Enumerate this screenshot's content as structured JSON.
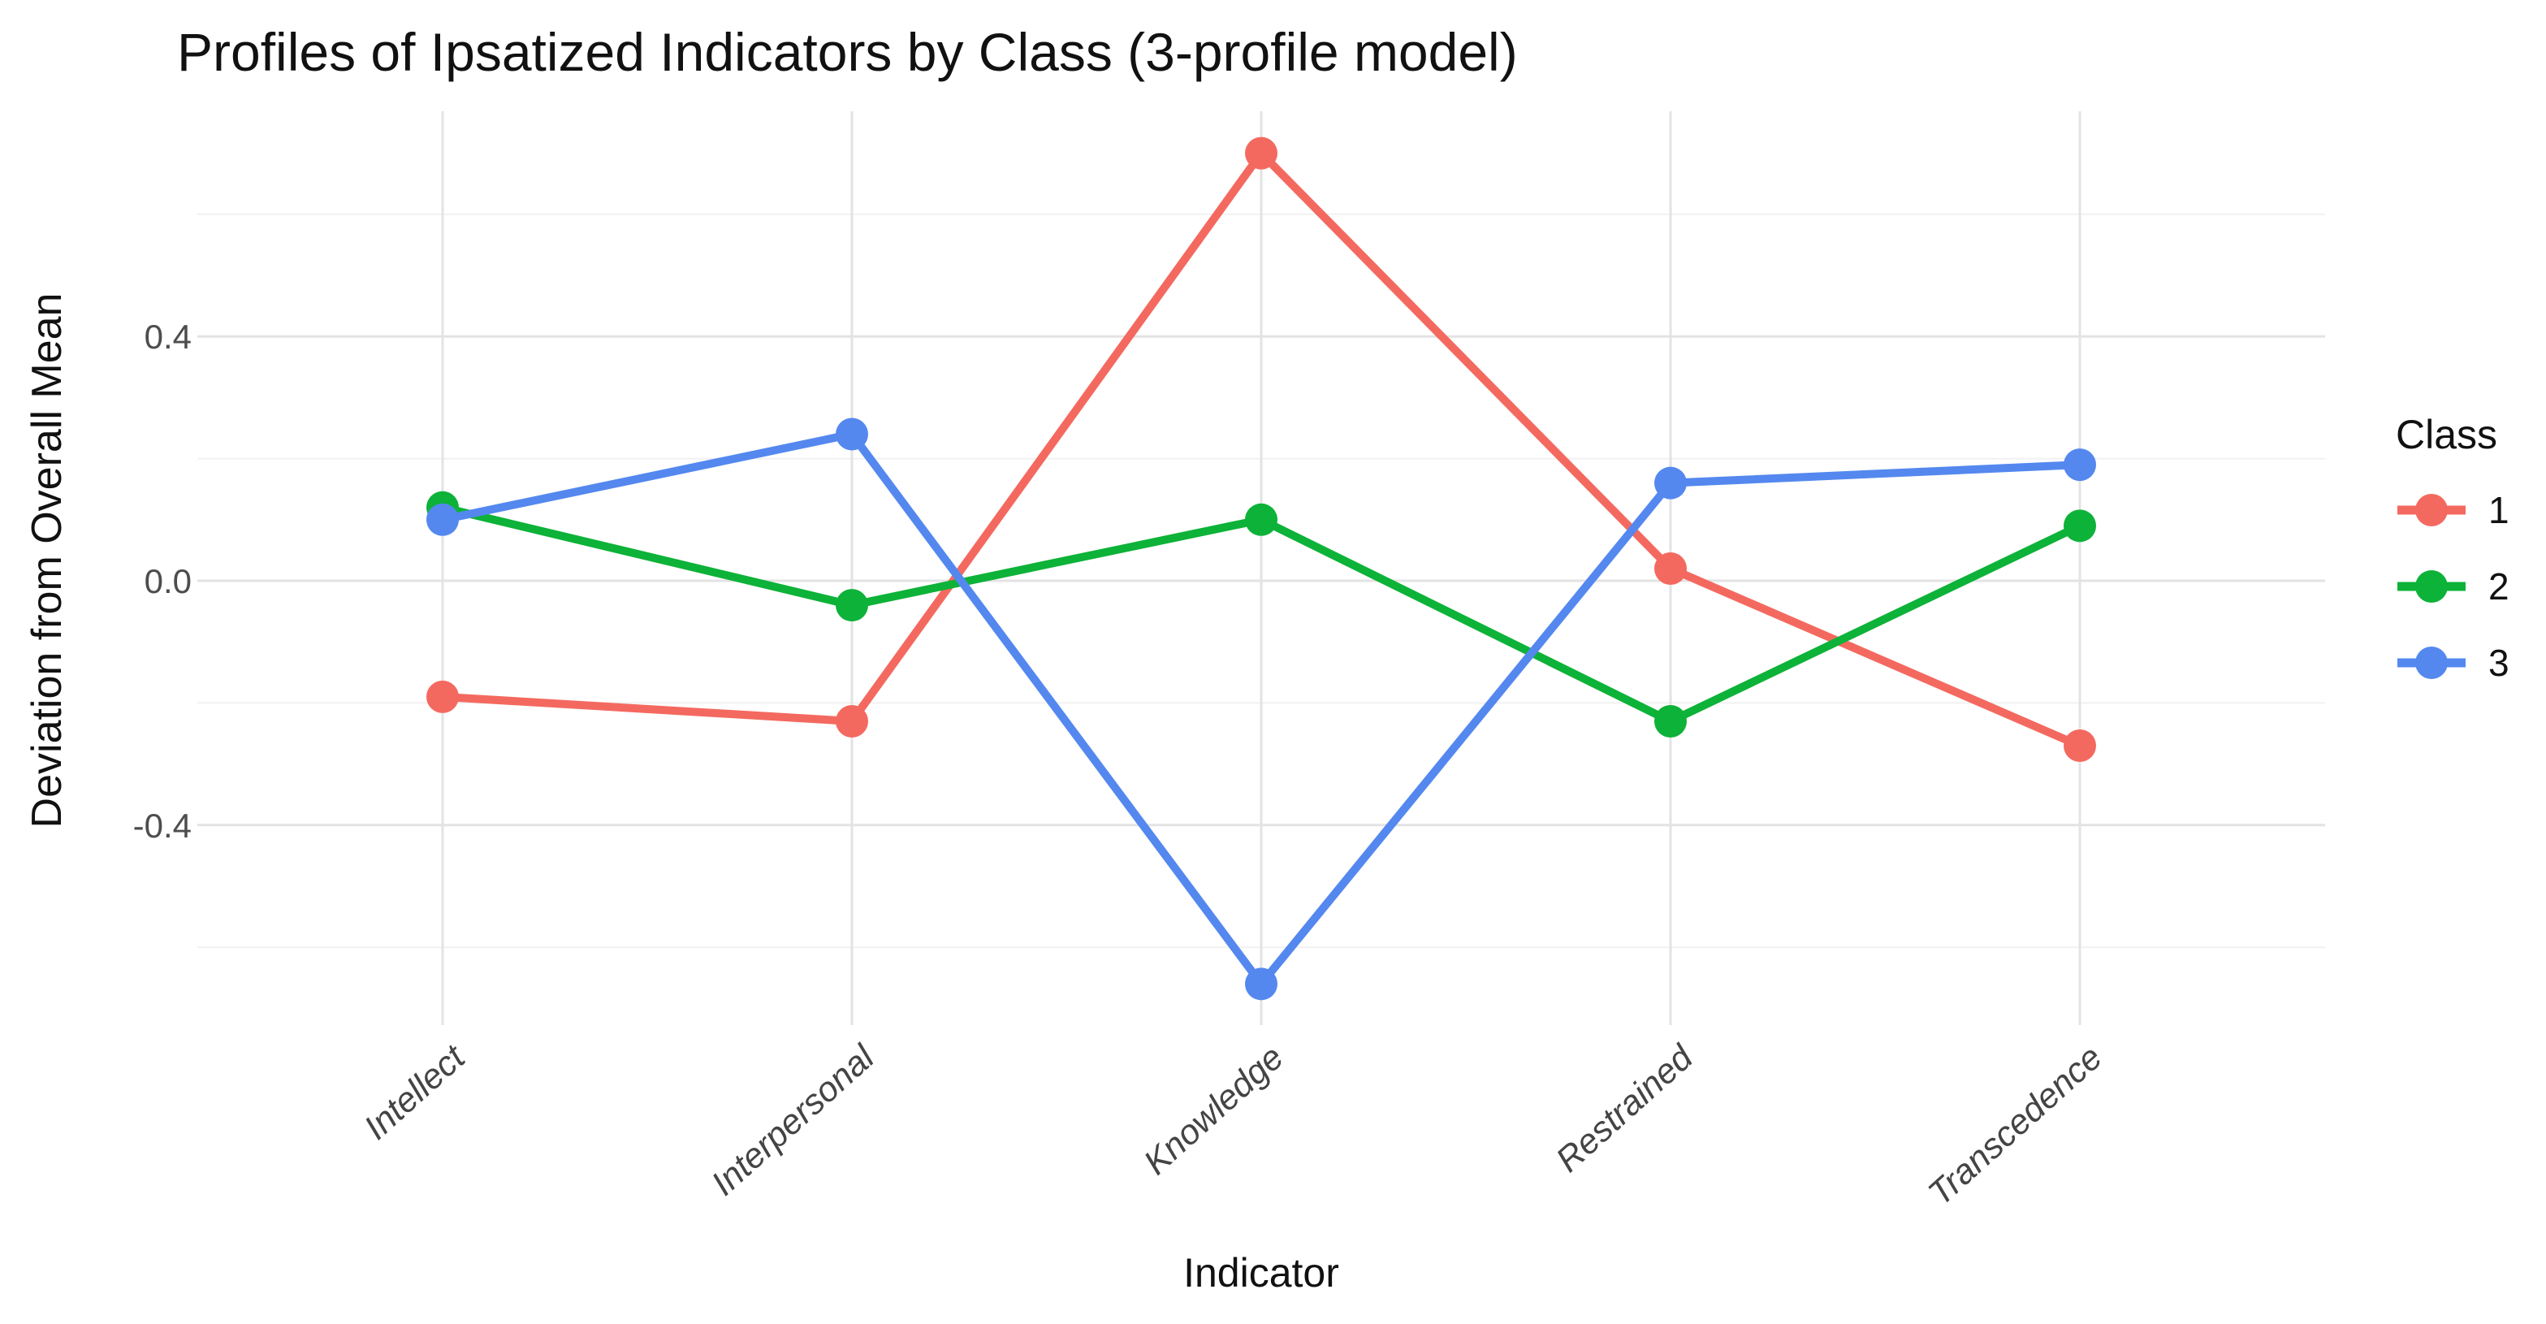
{
  "title": "Profiles of Ipsatized Indicators by Class (3-profile model)",
  "chart_data": {
    "type": "line",
    "title": "Profiles of Ipsatized Indicators by Class (3-profile model)",
    "xlabel": "Indicator",
    "ylabel": "Deviation from Overall Mean",
    "categories": [
      "Intellect",
      "Interpersonal",
      "Knowledge",
      "Restrained",
      "Transcedence"
    ],
    "series": [
      {
        "name": "1",
        "color": "#f4695f",
        "values": [
          -0.19,
          -0.23,
          0.7,
          0.02,
          -0.27
        ]
      },
      {
        "name": "2",
        "color": "#0db238",
        "values": [
          0.12,
          -0.04,
          0.1,
          -0.23,
          0.09
        ]
      },
      {
        "name": "3",
        "color": "#5488ef",
        "values": [
          0.1,
          0.24,
          -0.66,
          0.16,
          0.19
        ]
      }
    ],
    "y_major_ticks": [
      0.4,
      0.0,
      -0.4
    ],
    "y_tick_labels": [
      "0.4",
      "0.0",
      "-0.4"
    ],
    "ylim": [
      -0.73,
      0.77
    ],
    "grid": "major+minor",
    "legend_title": "Class",
    "legend_position": "right",
    "marker": "circle",
    "colors_note": {
      "major_grid": "#e3e3e3",
      "minor_grid": "#f1f1f1",
      "tick_text": "#4d4d4d"
    }
  }
}
